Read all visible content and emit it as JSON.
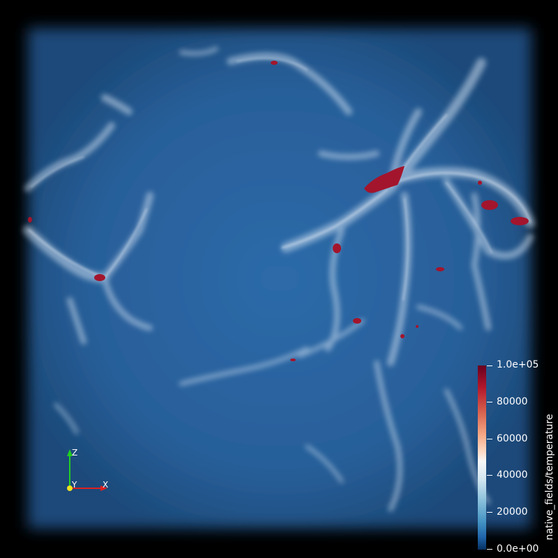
{
  "colorbar": {
    "title": "native_fields/temperature",
    "ticks": [
      "1.0e+05",
      "80000",
      "60000",
      "40000",
      "20000",
      "0.0e+00"
    ],
    "range": [
      0,
      100000
    ],
    "colormap": "red-white-blue diverging"
  },
  "orientation_axes": {
    "x_label": "X",
    "y_label": "Y",
    "z_label": "Z",
    "x_color": "#e02020",
    "y_color": "#f0e020",
    "z_color": "#20d020"
  },
  "colors": {
    "background": "#000000",
    "volume_blue": "#2f6aa8",
    "filament": "#c8d8ea",
    "hot_gas": "#a0142a"
  }
}
